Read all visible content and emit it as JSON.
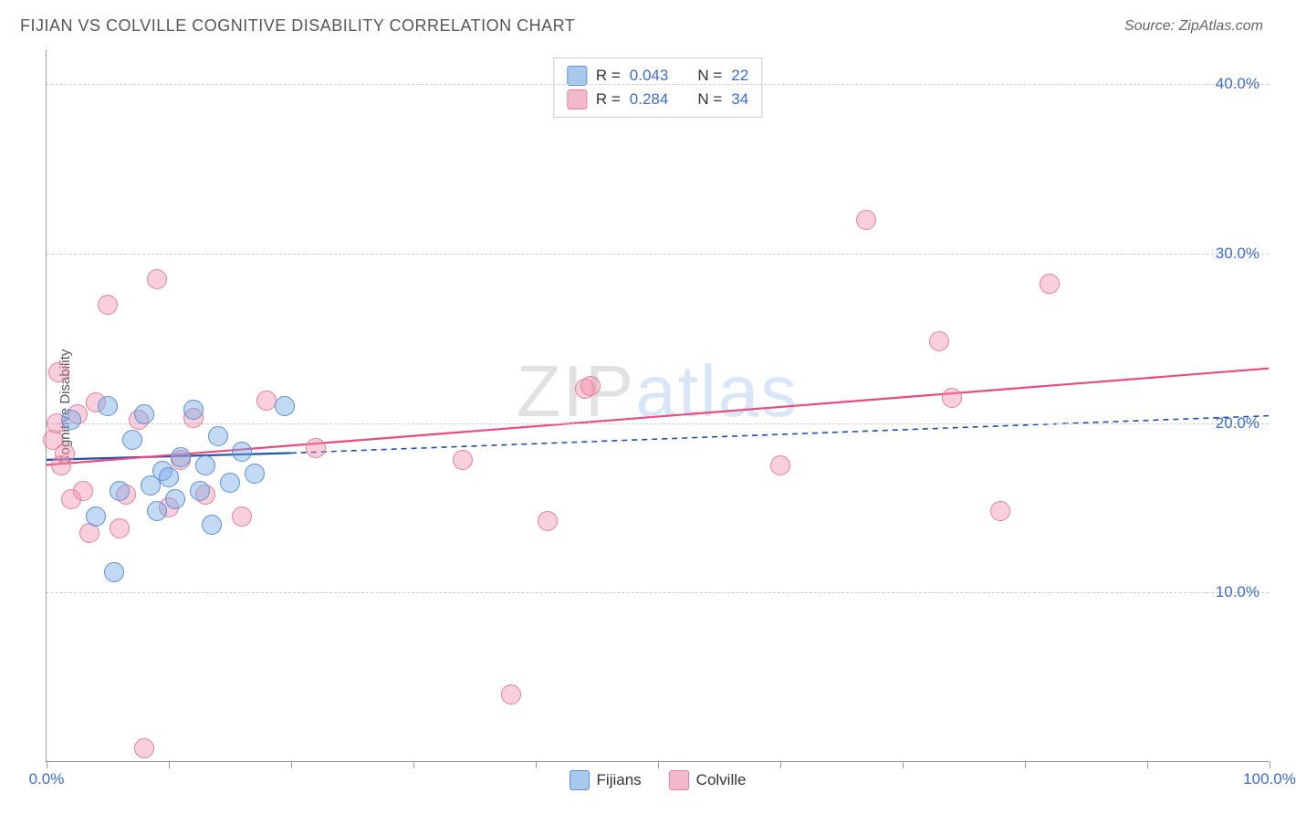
{
  "header": {
    "title": "FIJIAN VS COLVILLE COGNITIVE DISABILITY CORRELATION CHART",
    "source": "Source: ZipAtlas.com"
  },
  "chart": {
    "type": "scatter",
    "ylabel": "Cognitive Disability",
    "xlim": [
      0,
      100
    ],
    "ylim": [
      0,
      42
    ],
    "x_ticks": [
      0,
      10,
      20,
      30,
      40,
      50,
      60,
      70,
      80,
      90,
      100
    ],
    "x_tick_labels": {
      "0": "0.0%",
      "100": "100.0%"
    },
    "y_gridlines": [
      10,
      20,
      30,
      40
    ],
    "y_tick_labels": {
      "10": "10.0%",
      "20": "20.0%",
      "30": "30.0%",
      "40": "40.0%"
    },
    "background_color": "#ffffff",
    "grid_color": "#cccccc",
    "axis_color": "#999999",
    "tick_label_color": "#3b6bd6",
    "label_fontsize": 15,
    "tick_fontsize": 17,
    "point_radius": 11,
    "series": {
      "fijians": {
        "label": "Fijians",
        "fill": "rgba(120,170,230,0.45)",
        "stroke": "#5a8fd6",
        "swatch_fill": "#a8c8ec",
        "swatch_border": "#5a8fd6",
        "r": "0.043",
        "n": "22",
        "trend": {
          "solid": {
            "x1": 0,
            "y1": 17.8,
            "x2": 20,
            "y2": 18.2,
            "color": "#1e4fa8",
            "width": 2.2
          },
          "dashed": {
            "x1": 20,
            "y1": 18.2,
            "x2": 100,
            "y2": 20.4,
            "color": "#1e4fa8",
            "width": 1.6,
            "dash": "6,5"
          }
        },
        "points": [
          {
            "x": 2,
            "y": 20.2
          },
          {
            "x": 4,
            "y": 14.5
          },
          {
            "x": 5,
            "y": 21.0
          },
          {
            "x": 5.5,
            "y": 11.2
          },
          {
            "x": 6,
            "y": 16.0
          },
          {
            "x": 7,
            "y": 19.0
          },
          {
            "x": 8,
            "y": 20.5
          },
          {
            "x": 8.5,
            "y": 16.3
          },
          {
            "x": 9,
            "y": 14.8
          },
          {
            "x": 9.5,
            "y": 17.2
          },
          {
            "x": 10,
            "y": 16.8
          },
          {
            "x": 10.5,
            "y": 15.5
          },
          {
            "x": 11,
            "y": 18.0
          },
          {
            "x": 12,
            "y": 20.8
          },
          {
            "x": 12.5,
            "y": 16.0
          },
          {
            "x": 13,
            "y": 17.5
          },
          {
            "x": 13.5,
            "y": 14.0
          },
          {
            "x": 14,
            "y": 19.2
          },
          {
            "x": 15,
            "y": 16.5
          },
          {
            "x": 16,
            "y": 18.3
          },
          {
            "x": 17,
            "y": 17.0
          },
          {
            "x": 19.5,
            "y": 21.0
          }
        ]
      },
      "colville": {
        "label": "Colville",
        "fill": "rgba(240,140,170,0.42)",
        "stroke": "#e37fa0",
        "swatch_fill": "#f4b8cc",
        "swatch_border": "#e37fa0",
        "r": "0.284",
        "n": "34",
        "trend": {
          "solid": {
            "x1": 0,
            "y1": 17.5,
            "x2": 100,
            "y2": 23.2,
            "color": "#e94b7e",
            "width": 2.2
          }
        },
        "points": [
          {
            "x": 0.5,
            "y": 19.0
          },
          {
            "x": 0.8,
            "y": 20.0
          },
          {
            "x": 1,
            "y": 23.0
          },
          {
            "x": 1.2,
            "y": 17.5
          },
          {
            "x": 1.5,
            "y": 18.2
          },
          {
            "x": 2,
            "y": 15.5
          },
          {
            "x": 2.5,
            "y": 20.5
          },
          {
            "x": 3,
            "y": 16.0
          },
          {
            "x": 3.5,
            "y": 13.5
          },
          {
            "x": 4,
            "y": 21.2
          },
          {
            "x": 5,
            "y": 27.0
          },
          {
            "x": 6,
            "y": 13.8
          },
          {
            "x": 6.5,
            "y": 15.8
          },
          {
            "x": 7.5,
            "y": 20.2
          },
          {
            "x": 8,
            "y": 0.8
          },
          {
            "x": 9,
            "y": 28.5
          },
          {
            "x": 10,
            "y": 15.0
          },
          {
            "x": 11,
            "y": 17.8
          },
          {
            "x": 12,
            "y": 20.3
          },
          {
            "x": 13,
            "y": 15.8
          },
          {
            "x": 16,
            "y": 14.5
          },
          {
            "x": 18,
            "y": 21.3
          },
          {
            "x": 22,
            "y": 18.5
          },
          {
            "x": 34,
            "y": 17.8
          },
          {
            "x": 38,
            "y": 4.0
          },
          {
            "x": 41,
            "y": 14.2
          },
          {
            "x": 44,
            "y": 22.0
          },
          {
            "x": 44.5,
            "y": 22.2
          },
          {
            "x": 60,
            "y": 17.5
          },
          {
            "x": 67,
            "y": 32.0
          },
          {
            "x": 73,
            "y": 24.8
          },
          {
            "x": 74,
            "y": 21.5
          },
          {
            "x": 78,
            "y": 14.8
          },
          {
            "x": 82,
            "y": 28.2
          }
        ]
      }
    },
    "legend_top": {
      "r_label": "R =",
      "n_label": "N ="
    },
    "watermark": {
      "part1": "ZIP",
      "part2": "atlas"
    }
  }
}
